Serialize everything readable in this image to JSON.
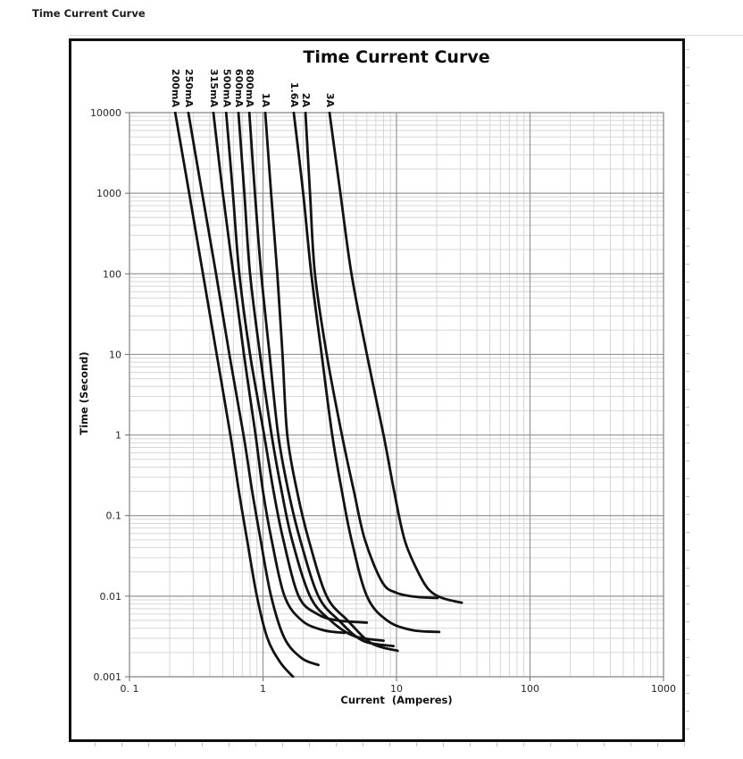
{
  "page": {
    "sheet_title": "Time Current Curve"
  },
  "chart": {
    "title": "Time Current Curve",
    "x_axis": {
      "title": "Current  (Amperes)",
      "ticks": [
        "0. 1",
        "1",
        "10",
        "100",
        "1000"
      ]
    },
    "y_axis": {
      "title": "Time (Second)",
      "ticks": [
        "10000",
        "1000",
        "100",
        "10",
        "1",
        "0.1",
        "0.01",
        "0.001"
      ]
    }
  },
  "colors": {
    "curve": "#121212",
    "grid_minor": "#d6d6d6",
    "grid_major": "#969696",
    "axis": "#8f8f8f",
    "tick": "#6e6e6e",
    "text": "#262626"
  },
  "chart_data": {
    "type": "line",
    "title": "Time Current Curve",
    "xlabel": "Current (Amperes)",
    "ylabel": "Time (Second)",
    "x_scale": "log",
    "y_scale": "log",
    "xlim": [
      0.1,
      1000
    ],
    "ylim": [
      0.001,
      10000
    ],
    "grid": "log-log major and minor gridlines",
    "legend_position": "rotated labels above curve tops",
    "series_note": "points are [current_amperes, time_seconds]",
    "series": [
      {
        "name": "200mA",
        "points": [
          [
            0.22,
            10000
          ],
          [
            0.28,
            1000
          ],
          [
            0.355,
            100
          ],
          [
            0.45,
            10
          ],
          [
            0.57,
            1
          ],
          [
            0.66,
            0.2
          ],
          [
            0.76,
            0.05
          ],
          [
            0.9,
            0.01
          ],
          [
            1.08,
            0.003
          ],
          [
            1.35,
            0.0015
          ],
          [
            1.68,
            0.001
          ]
        ]
      },
      {
        "name": "250mA",
        "points": [
          [
            0.276,
            10000
          ],
          [
            0.35,
            1000
          ],
          [
            0.445,
            100
          ],
          [
            0.56,
            10
          ],
          [
            0.715,
            1
          ],
          [
            0.83,
            0.2
          ],
          [
            0.96,
            0.05
          ],
          [
            1.15,
            0.01
          ],
          [
            1.45,
            0.003
          ],
          [
            1.95,
            0.0017
          ],
          [
            2.6,
            0.0014
          ]
        ]
      },
      {
        "name": "315mA",
        "points": [
          [
            0.425,
            10000
          ],
          [
            0.5,
            1000
          ],
          [
            0.6,
            100
          ],
          [
            0.72,
            10
          ],
          [
            0.88,
            1
          ],
          [
            1.0,
            0.2
          ],
          [
            1.16,
            0.05
          ],
          [
            1.45,
            0.01
          ],
          [
            1.95,
            0.005
          ],
          [
            2.8,
            0.0038
          ],
          [
            4.08,
            0.0035
          ]
        ]
      },
      {
        "name": "500mA",
        "points": [
          [
            0.53,
            10000
          ],
          [
            0.595,
            1000
          ],
          [
            0.665,
            100
          ],
          [
            0.8,
            10
          ],
          [
            1.02,
            1
          ],
          [
            1.2,
            0.2
          ],
          [
            1.42,
            0.05
          ],
          [
            1.85,
            0.01
          ],
          [
            2.55,
            0.006
          ],
          [
            3.6,
            0.005
          ],
          [
            6.0,
            0.0047
          ]
        ]
      },
      {
        "name": "600mA",
        "points": [
          [
            0.655,
            10000
          ],
          [
            0.725,
            1000
          ],
          [
            0.8,
            100
          ],
          [
            0.95,
            10
          ],
          [
            1.16,
            1
          ],
          [
            1.38,
            0.2
          ],
          [
            1.65,
            0.05
          ],
          [
            2.25,
            0.01
          ],
          [
            3.2,
            0.005
          ],
          [
            4.8,
            0.0032
          ],
          [
            8.0,
            0.0028
          ]
        ]
      },
      {
        "name": "800mA",
        "points": [
          [
            0.79,
            10000
          ],
          [
            0.87,
            1000
          ],
          [
            0.97,
            100
          ],
          [
            1.12,
            10
          ],
          [
            1.3,
            1
          ],
          [
            1.55,
            0.2
          ],
          [
            1.9,
            0.05
          ],
          [
            2.6,
            0.01
          ],
          [
            3.7,
            0.005
          ],
          [
            5.6,
            0.0028
          ],
          [
            9.5,
            0.0024
          ]
        ]
      },
      {
        "name": "1A",
        "points": [
          [
            1.04,
            10000
          ],
          [
            1.15,
            1000
          ],
          [
            1.28,
            100
          ],
          [
            1.4,
            10
          ],
          [
            1.52,
            1
          ],
          [
            1.8,
            0.2
          ],
          [
            2.2,
            0.05
          ],
          [
            3.0,
            0.01
          ],
          [
            4.3,
            0.005
          ],
          [
            6.5,
            0.0026
          ],
          [
            10.2,
            0.0021
          ]
        ]
      },
      {
        "name": "1.6A",
        "points": [
          [
            1.7,
            10000
          ],
          [
            2.0,
            1000
          ],
          [
            2.3,
            100
          ],
          [
            2.75,
            10
          ],
          [
            3.3,
            1
          ],
          [
            3.9,
            0.2
          ],
          [
            4.6,
            0.05
          ],
          [
            6.0,
            0.01
          ],
          [
            8.5,
            0.005
          ],
          [
            13.0,
            0.0038
          ],
          [
            20.9,
            0.0036
          ]
        ]
      },
      {
        "name": "2A",
        "points": [
          [
            2.08,
            10000
          ],
          [
            2.25,
            1000
          ],
          [
            2.45,
            100
          ],
          [
            3.0,
            10
          ],
          [
            3.9,
            1
          ],
          [
            4.8,
            0.2
          ],
          [
            5.8,
            0.05
          ],
          [
            7.8,
            0.015
          ],
          [
            10.0,
            0.011
          ],
          [
            14.0,
            0.0098
          ],
          [
            20.3,
            0.0095
          ]
        ]
      },
      {
        "name": "3A",
        "points": [
          [
            3.15,
            10000
          ],
          [
            3.8,
            1000
          ],
          [
            4.6,
            100
          ],
          [
            6.0,
            10
          ],
          [
            8.0,
            1
          ],
          [
            9.6,
            0.2
          ],
          [
            11.5,
            0.05
          ],
          [
            14.5,
            0.02
          ],
          [
            17.5,
            0.012
          ],
          [
            22.0,
            0.0095
          ],
          [
            30.8,
            0.0083
          ]
        ]
      }
    ]
  }
}
